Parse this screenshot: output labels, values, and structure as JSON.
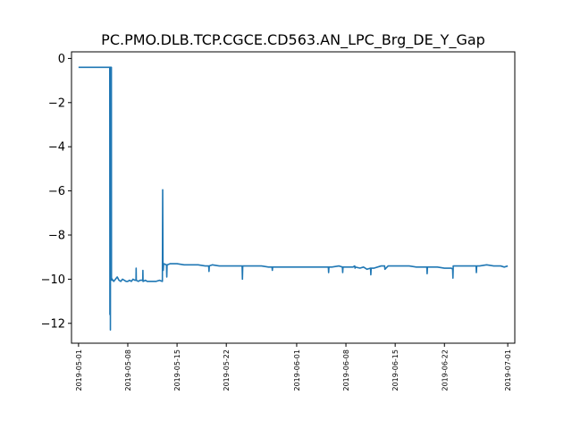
{
  "chart_data": {
    "type": "line",
    "title": "PC.PMO.DLB.TCP.CGCE.CD563.AN_LPC_Brg_DE_Y_Gap",
    "xlabel": "",
    "ylabel": "",
    "x_type": "date",
    "xlim": [
      "2019-04-30T00:00",
      "2019-07-02T00:00"
    ],
    "ylim": [
      -12.9,
      0.3
    ],
    "grid": false,
    "legend": "none",
    "color": "#1f77b4",
    "x_ticks": [
      "2019-05-01",
      "2019-05-08",
      "2019-05-15",
      "2019-05-22",
      "2019-06-01",
      "2019-06-08",
      "2019-06-15",
      "2019-06-22",
      "2019-07-01"
    ],
    "y_ticks": [
      0,
      -2,
      -4,
      -6,
      -8,
      -10,
      -12
    ],
    "y_tick_labels": [
      "0",
      "−2",
      "−4",
      "−6",
      "−8",
      "−10",
      "−12"
    ],
    "series": [
      {
        "x": [
          "2019-05-01T00:00",
          "2019-05-05T10:00",
          "2019-05-05T10:30",
          "2019-05-05T11:00",
          "2019-05-05T11:20",
          "2019-05-05T12:00",
          "2019-05-05T12:20",
          "2019-05-05T12:40",
          "2019-05-05T13:00",
          "2019-05-05T14:00",
          "2019-05-05T14:20",
          "2019-05-05T14:40",
          "2019-05-05T16:00",
          "2019-05-05T16:20",
          "2019-05-05T16:40",
          "2019-05-05T17:00",
          "2019-05-05T17:30",
          "2019-05-05T18:00",
          "2019-05-05T19:00",
          "2019-05-06T00:00",
          "2019-05-06T12:00",
          "2019-05-06T18:00",
          "2019-05-07T00:00",
          "2019-05-07T06:00",
          "2019-05-07T12:00",
          "2019-05-07T18:00",
          "2019-05-08T00:00",
          "2019-05-08T06:00",
          "2019-05-08T12:00",
          "2019-05-08T18:00",
          "2019-05-09T00:00",
          "2019-05-09T04:00",
          "2019-05-09T04:30",
          "2019-05-09T05:00",
          "2019-05-09T12:00",
          "2019-05-09T18:00",
          "2019-05-10T00:00",
          "2019-05-10T03:00",
          "2019-05-10T03:30",
          "2019-05-10T04:00",
          "2019-05-10T12:00",
          "2019-05-10T18:00",
          "2019-05-11T00:00",
          "2019-05-11T12:00",
          "2019-05-12T00:00",
          "2019-05-12T12:00",
          "2019-05-12T22:00",
          "2019-05-12T23:00",
          "2019-05-13T00:00",
          "2019-05-13T01:00",
          "2019-05-13T02:00",
          "2019-05-13T03:00",
          "2019-05-13T12:00",
          "2019-05-13T13:00",
          "2019-05-13T14:00",
          "2019-05-14T00:00",
          "2019-05-15T00:00",
          "2019-05-16T00:00",
          "2019-05-17T00:00",
          "2019-05-18T00:00",
          "2019-05-19T00:00",
          "2019-05-19T12:00",
          "2019-05-19T13:00",
          "2019-05-19T14:00",
          "2019-05-20T00:00",
          "2019-05-21T00:00",
          "2019-05-22T00:00",
          "2019-05-23T00:00",
          "2019-05-24T00:00",
          "2019-05-24T06:00",
          "2019-05-24T07:00",
          "2019-05-24T08:00",
          "2019-05-25T00:00",
          "2019-05-26T00:00",
          "2019-05-27T00:00",
          "2019-05-28T00:00",
          "2019-05-28T12:00",
          "2019-05-28T13:00",
          "2019-05-28T14:00",
          "2019-05-29T00:00",
          "2019-05-30T00:00",
          "2019-05-31T00:00",
          "2019-06-01T00:00",
          "2019-06-02T00:00",
          "2019-06-03T00:00",
          "2019-06-04T00:00",
          "2019-06-05T00:00",
          "2019-06-05T12:00",
          "2019-06-05T13:00",
          "2019-06-05T14:00",
          "2019-06-06T00:00",
          "2019-06-07T00:00",
          "2019-06-07T12:00",
          "2019-06-07T13:00",
          "2019-06-07T14:00",
          "2019-06-08T00:00",
          "2019-06-09T00:00",
          "2019-06-09T06:00",
          "2019-06-09T07:00",
          "2019-06-09T08:00",
          "2019-06-10T00:00",
          "2019-06-10T12:00",
          "2019-06-11T00:00",
          "2019-06-11T12:00",
          "2019-06-11T13:00",
          "2019-06-11T14:00",
          "2019-06-12T00:00",
          "2019-06-13T00:00",
          "2019-06-13T12:00",
          "2019-06-13T13:00",
          "2019-06-14T00:00",
          "2019-06-15T00:00",
          "2019-06-16T00:00",
          "2019-06-17T00:00",
          "2019-06-18T00:00",
          "2019-06-19T00:00",
          "2019-06-19T12:00",
          "2019-06-19T13:00",
          "2019-06-19T14:00",
          "2019-06-20T00:00",
          "2019-06-21T00:00",
          "2019-06-22T00:00",
          "2019-06-23T00:00",
          "2019-06-23T04:00",
          "2019-06-23T05:00",
          "2019-06-23T06:00",
          "2019-06-23T12:00",
          "2019-06-23T18:00",
          "2019-06-24T00:00",
          "2019-06-25T00:00",
          "2019-06-26T00:00",
          "2019-06-26T12:00",
          "2019-06-26T13:00",
          "2019-06-26T14:00",
          "2019-06-27T00:00",
          "2019-06-28T00:00",
          "2019-06-29T00:00",
          "2019-06-30T00:00",
          "2019-06-30T12:00",
          "2019-07-01T00:00"
        ],
        "y": [
          -0.4,
          -0.4,
          -0.4,
          -11.6,
          -0.4,
          -0.4,
          -0.4,
          -12.3,
          -0.4,
          -0.4,
          -10.0,
          -0.4,
          -0.4,
          -10.0,
          -10.0,
          -9.95,
          -10.05,
          -10.0,
          -10.0,
          -10.1,
          -9.9,
          -10.05,
          -10.1,
          -10.0,
          -10.05,
          -10.1,
          -10.1,
          -10.05,
          -10.1,
          -10.0,
          -10.05,
          -10.05,
          -9.5,
          -10.05,
          -10.1,
          -10.05,
          -10.05,
          -10.05,
          -9.6,
          -10.1,
          -10.05,
          -10.1,
          -10.1,
          -10.1,
          -10.1,
          -10.05,
          -10.1,
          -5.95,
          -9.3,
          -9.6,
          -9.35,
          -9.3,
          -9.35,
          -9.9,
          -9.35,
          -9.3,
          -9.3,
          -9.35,
          -9.35,
          -9.35,
          -9.4,
          -9.4,
          -9.65,
          -9.4,
          -9.35,
          -9.4,
          -9.4,
          -9.4,
          -9.4,
          -9.4,
          -10.0,
          -9.4,
          -9.4,
          -9.4,
          -9.4,
          -9.45,
          -9.45,
          -9.6,
          -9.45,
          -9.45,
          -9.45,
          -9.45,
          -9.45,
          -9.45,
          -9.45,
          -9.45,
          -9.45,
          -9.45,
          -9.7,
          -9.45,
          -9.45,
          -9.4,
          -9.45,
          -9.7,
          -9.45,
          -9.45,
          -9.45,
          -9.4,
          -9.5,
          -9.45,
          -9.5,
          -9.45,
          -9.55,
          -9.5,
          -9.8,
          -9.5,
          -9.5,
          -9.4,
          -9.4,
          -9.55,
          -9.4,
          -9.4,
          -9.4,
          -9.4,
          -9.45,
          -9.45,
          -9.45,
          -9.75,
          -9.45,
          -9.45,
          -9.45,
          -9.5,
          -9.5,
          -9.55,
          -9.95,
          -9.4,
          -9.4,
          -9.4,
          -9.4,
          -9.4,
          -9.4,
          -9.4,
          -9.7,
          -9.4,
          -9.4,
          -9.35,
          -9.4,
          -9.4,
          -9.45,
          -9.4
        ]
      }
    ]
  }
}
